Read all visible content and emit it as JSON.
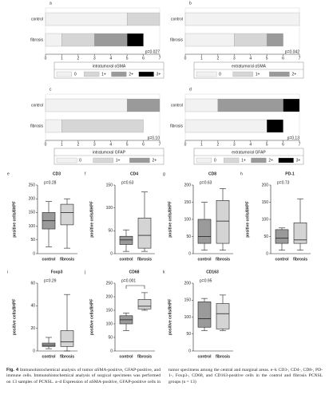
{
  "chart_data": [
    {
      "type": "stacked_barh",
      "panel": "a",
      "categories": [
        "control",
        "fibrosis"
      ],
      "legend_title": "intratumoral αSMA",
      "annotation": "p=0.027",
      "xlim": [
        0,
        7
      ],
      "xticks": [
        0,
        1,
        2,
        3,
        4,
        5,
        6,
        7
      ],
      "series": [
        {
          "name": "0",
          "color": "#f2f2f2",
          "values": [
            5,
            1
          ]
        },
        {
          "name": "1+",
          "color": "#d6d6d6",
          "values": [
            2,
            2
          ]
        },
        {
          "name": "2+",
          "color": "#9a9a9a",
          "values": [
            0,
            2
          ]
        },
        {
          "name": "3+",
          "color": "#000000",
          "values": [
            0,
            1
          ]
        }
      ]
    },
    {
      "type": "stacked_barh",
      "panel": "b",
      "categories": [
        "control",
        "fibrosis"
      ],
      "legend_title": "extratumoral αSMA",
      "annotation": "p=0.042",
      "xlim": [
        0,
        7
      ],
      "xticks": [
        0,
        1,
        2,
        3,
        4,
        5,
        6,
        7
      ],
      "series": [
        {
          "name": "0",
          "color": "#f2f2f2",
          "values": [
            7,
            3
          ]
        },
        {
          "name": "1+",
          "color": "#d6d6d6",
          "values": [
            0,
            2
          ]
        },
        {
          "name": "2+",
          "color": "#9a9a9a",
          "values": [
            0,
            1
          ]
        }
      ]
    },
    {
      "type": "stacked_barh",
      "panel": "c",
      "categories": [
        "control",
        "fibrosis"
      ],
      "legend_title": "intratumoral GFAP",
      "annotation": "p=0.10",
      "xlim": [
        0,
        7
      ],
      "xticks": [
        0,
        1,
        2,
        3,
        4,
        5,
        6,
        7
      ],
      "series": [
        {
          "name": "0",
          "color": "#f2f2f2",
          "values": [
            5,
            1
          ]
        },
        {
          "name": "1+",
          "color": "#d6d6d6",
          "values": [
            0,
            5
          ]
        },
        {
          "name": "2+",
          "color": "#9a9a9a",
          "values": [
            2,
            0
          ]
        }
      ]
    },
    {
      "type": "stacked_barh",
      "panel": "d",
      "categories": [
        "control",
        "fibrosis"
      ],
      "legend_title": "extratumoral GFAP",
      "annotation": "p=0.13",
      "xlim": [
        0,
        7
      ],
      "xticks": [
        0,
        1,
        2,
        3,
        4,
        5,
        6,
        7
      ],
      "series": [
        {
          "name": "0",
          "color": "#f2f2f2",
          "values": [
            2,
            5
          ]
        },
        {
          "name": "1+",
          "color": "#d6d6d6",
          "values": [
            0,
            0
          ]
        },
        {
          "name": "2+",
          "color": "#9a9a9a",
          "values": [
            4,
            0
          ]
        },
        {
          "name": "3+",
          "color": "#000000",
          "values": [
            1,
            1
          ]
        }
      ]
    },
    {
      "type": "box",
      "panel": "e",
      "title": "CD3",
      "annotation": "p=0.28",
      "ylabel": "positive cells/8HPF",
      "categories": [
        "control",
        "fibrosis"
      ],
      "colors": [
        "#9a9a9a",
        "#d4d4d4"
      ],
      "ylim": [
        0,
        250
      ],
      "yticks": [
        0,
        50,
        100,
        150,
        200,
        250
      ],
      "boxes": [
        {
          "min": 25,
          "q1": 90,
          "median": 120,
          "q3": 150,
          "max": 190
        },
        {
          "min": 20,
          "q1": 105,
          "median": 150,
          "q3": 180,
          "max": 200
        }
      ]
    },
    {
      "type": "box",
      "panel": "f",
      "title": "CD4",
      "annotation": "p=0.63",
      "ylabel": "positive cells/8HPF",
      "categories": [
        "control",
        "fibrosis"
      ],
      "colors": [
        "#9a9a9a",
        "#d4d4d4"
      ],
      "ylim": [
        0,
        150
      ],
      "yticks": [
        0,
        50,
        100,
        150
      ],
      "boxes": [
        {
          "min": 5,
          "q1": 20,
          "median": 30,
          "q3": 38,
          "max": 52
        },
        {
          "min": 5,
          "q1": 12,
          "median": 40,
          "q3": 78,
          "max": 135
        }
      ]
    },
    {
      "type": "box",
      "panel": "g",
      "title": "CD8",
      "annotation": "p=0.63",
      "ylabel": "positive cells/8HPF",
      "categories": [
        "control",
        "fibrosis"
      ],
      "colors": [
        "#9a9a9a",
        "#d4d4d4"
      ],
      "ylim": [
        0,
        200
      ],
      "yticks": [
        0,
        50,
        100,
        150,
        200
      ],
      "boxes": [
        {
          "min": 10,
          "q1": 30,
          "median": 50,
          "q3": 100,
          "max": 150
        },
        {
          "min": 10,
          "q1": 30,
          "median": 95,
          "q3": 155,
          "max": 190
        }
      ]
    },
    {
      "type": "box",
      "panel": "h",
      "title": "PD-1",
      "annotation": "p=0.73",
      "ylabel": "positive cells/8HPF",
      "categories": [
        "control",
        "fibrosis"
      ],
      "colors": [
        "#9a9a9a",
        "#d4d4d4"
      ],
      "ylim": [
        0,
        200
      ],
      "yticks": [
        0,
        50,
        100,
        150,
        200
      ],
      "boxes": [
        {
          "min": 10,
          "q1": 30,
          "median": 45,
          "q3": 70,
          "max": 75
        },
        {
          "min": 10,
          "q1": 30,
          "median": 40,
          "q3": 90,
          "max": 160
        }
      ]
    },
    {
      "type": "box",
      "panel": "i",
      "title": "Foxp3",
      "annotation": "p=0.29",
      "ylabel": "positive cells/8HPF",
      "categories": [
        "control",
        "fibrosis"
      ],
      "colors": [
        "#9a9a9a",
        "#d4d4d4"
      ],
      "ylim": [
        0,
        60
      ],
      "yticks": [
        0,
        20,
        40,
        60
      ],
      "boxes": [
        {
          "min": 2,
          "q1": 4,
          "median": 5,
          "q3": 7,
          "max": 12
        },
        {
          "min": 0,
          "q1": 4,
          "median": 8,
          "q3": 18,
          "max": 50
        }
      ]
    },
    {
      "type": "box",
      "panel": "j",
      "title": "CD68",
      "annotation": "p=0.001",
      "ylabel": "positive cells/8HPF",
      "categories": [
        "control",
        "fibrosis"
      ],
      "colors": [
        "#9a9a9a",
        "#d4d4d4"
      ],
      "ylim": [
        0,
        250
      ],
      "yticks": [
        0,
        50,
        100,
        150,
        200,
        250
      ],
      "boxes": [
        {
          "min": 75,
          "q1": 100,
          "median": 115,
          "q3": 130,
          "max": 140
        },
        {
          "min": 150,
          "q1": 155,
          "median": 165,
          "q3": 190,
          "max": 215
        }
      ]
    },
    {
      "type": "box",
      "panel": "k",
      "title": "CD163",
      "annotation": "p=0.95",
      "ylabel": "positive cells/8HPF",
      "categories": [
        "control",
        "fibrosis"
      ],
      "colors": [
        "#9a9a9a",
        "#d4d4d4"
      ],
      "ylim": [
        0,
        200
      ],
      "yticks": [
        0,
        50,
        100,
        150,
        200
      ],
      "boxes": [
        {
          "min": 60,
          "q1": 70,
          "median": 95,
          "q3": 145,
          "max": 155
        },
        {
          "min": 60,
          "q1": 65,
          "median": 110,
          "q3": 140,
          "max": 165
        }
      ]
    }
  ],
  "caption": {
    "label": "Fig. 4",
    "text": "Immunohistochemical analysis of tumor αSMA-positive, GFAP-positive, and immune cells. Immunohistochemical analysis of surgical specimens was performed on 13 samples of PCNSL. a–d Expression of αSMA-positive, GFAP-positive cells in tumor specimens among the central and marginal areas. e–k CD3-, CD4-, CD8-, PD-1-, Foxp3-, CD68, and CD163-positive cells in the control and fibrosis PCNSL groups (n = 13)"
  }
}
